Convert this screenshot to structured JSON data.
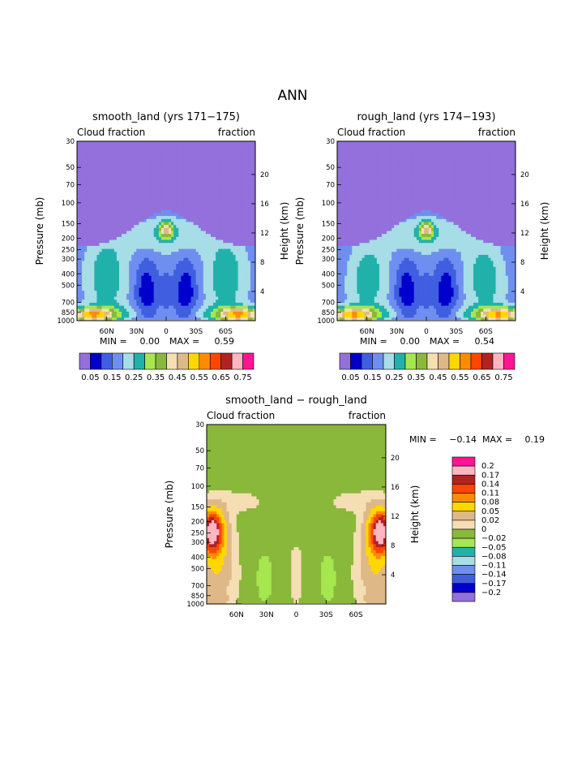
{
  "page_title": "ANN",
  "palette_abs": [
    "#9370DB",
    "#0000CD",
    "#3F5FE0",
    "#6F8FF0",
    "#A6DDE6",
    "#20B2AA",
    "#A6E64F",
    "#8AB83A",
    "#F5DEB3",
    "#DEB887",
    "#FFD700",
    "#FF8C00",
    "#FF4500",
    "#B22222",
    "#FFB6C1",
    "#FF1493"
  ],
  "palette_diff": [
    "#9370DB",
    "#0000CD",
    "#3F5FE0",
    "#6F8FF0",
    "#A6DDE6",
    "#20B2AA",
    "#A6E64F",
    "#8AB83A",
    "#F5DEB3",
    "#DEB887",
    "#FFD700",
    "#FF8C00",
    "#FF4500",
    "#B22222",
    "#FFB6C1",
    "#FF1493"
  ],
  "chart_data": [
    {
      "type": "heatmap",
      "title": "smooth_land (yrs 171−175)",
      "left_label": "Cloud fraction",
      "right_label": "fraction",
      "ylabel": "Pressure (mb)",
      "y2label": "Height (km)",
      "xticks": [
        "60N",
        "30N",
        "0",
        "30S",
        "60S"
      ],
      "xtick_lat": [
        60,
        30,
        0,
        -30,
        -60
      ],
      "xlim": [
        90,
        -90
      ],
      "ylim": [
        1000,
        30
      ],
      "y_scale": "log",
      "yticks": [
        30,
        50,
        70,
        100,
        150,
        200,
        250,
        300,
        400,
        500,
        700,
        850,
        1000
      ],
      "y2ticks": [
        20,
        16,
        12,
        8,
        4
      ],
      "min_label": "MIN =",
      "min_value": "0.00",
      "max_label": "MAX =",
      "max_value": "0.59",
      "colorbar_labels": [
        "0.05",
        "0.15",
        "0.25",
        "0.35",
        "0.45",
        "0.55",
        "0.65",
        "0.75"
      ],
      "colorbar_levels": [
        "0.05",
        "0.1",
        "0.15",
        "0.2",
        "0.25",
        "0.3",
        "0.35",
        "0.4",
        "0.45",
        "0.5",
        "0.55",
        "0.6",
        "0.65",
        "0.7",
        "0.75"
      ]
    },
    {
      "type": "heatmap",
      "title": "rough_land (yrs 174−193)",
      "left_label": "Cloud fraction",
      "right_label": "fraction",
      "ylabel": "Pressure (mb)",
      "y2label": "Height (km)",
      "xticks": [
        "60N",
        "30N",
        "0",
        "30S",
        "60S"
      ],
      "xtick_lat": [
        60,
        30,
        0,
        -30,
        -60
      ],
      "xlim": [
        90,
        -90
      ],
      "ylim": [
        1000,
        30
      ],
      "y_scale": "log",
      "yticks": [
        30,
        50,
        70,
        100,
        150,
        200,
        250,
        300,
        400,
        500,
        700,
        850,
        1000
      ],
      "y2ticks": [
        20,
        16,
        12,
        8,
        4
      ],
      "min_label": "MIN =",
      "min_value": "0.00",
      "max_label": "MAX =",
      "max_value": "0.54",
      "colorbar_labels": [
        "0.05",
        "0.15",
        "0.25",
        "0.35",
        "0.45",
        "0.55",
        "0.65",
        "0.75"
      ],
      "colorbar_levels": [
        "0.05",
        "0.1",
        "0.15",
        "0.2",
        "0.25",
        "0.3",
        "0.35",
        "0.4",
        "0.45",
        "0.5",
        "0.55",
        "0.6",
        "0.65",
        "0.7",
        "0.75"
      ]
    },
    {
      "type": "heatmap",
      "title": "smooth_land − rough_land",
      "left_label": "Cloud fraction",
      "right_label": "fraction",
      "ylabel": "Pressure (mb)",
      "y2label": "Height (km)",
      "xticks": [
        "60N",
        "30N",
        "0",
        "30S",
        "60S"
      ],
      "xtick_lat": [
        60,
        30,
        0,
        -30,
        -60
      ],
      "xlim": [
        90,
        -90
      ],
      "ylim": [
        1000,
        30
      ],
      "y_scale": "log",
      "yticks": [
        30,
        50,
        70,
        100,
        150,
        200,
        250,
        300,
        400,
        500,
        700,
        850,
        1000
      ],
      "y2ticks": [
        20,
        16,
        12,
        8,
        4
      ],
      "min_label": "MIN =",
      "min_value": "−0.14",
      "max_label": "MAX =",
      "max_value": "0.19",
      "colorbar_labels": [
        "0.2",
        "0.17",
        "0.14",
        "0.11",
        "0.08",
        "0.05",
        "0.02",
        "0",
        "−0.02",
        "−0.05",
        "−0.08",
        "−0.11",
        "−0.14",
        "−0.17",
        "−0.2"
      ],
      "colorbar_levels": [
        "0.2",
        "0.17",
        "0.14",
        "0.11",
        "0.08",
        "0.05",
        "0.02",
        "0",
        "−0.02",
        "−0.05",
        "−0.08",
        "−0.11",
        "−0.14",
        "−0.17",
        "−0.2"
      ]
    }
  ]
}
